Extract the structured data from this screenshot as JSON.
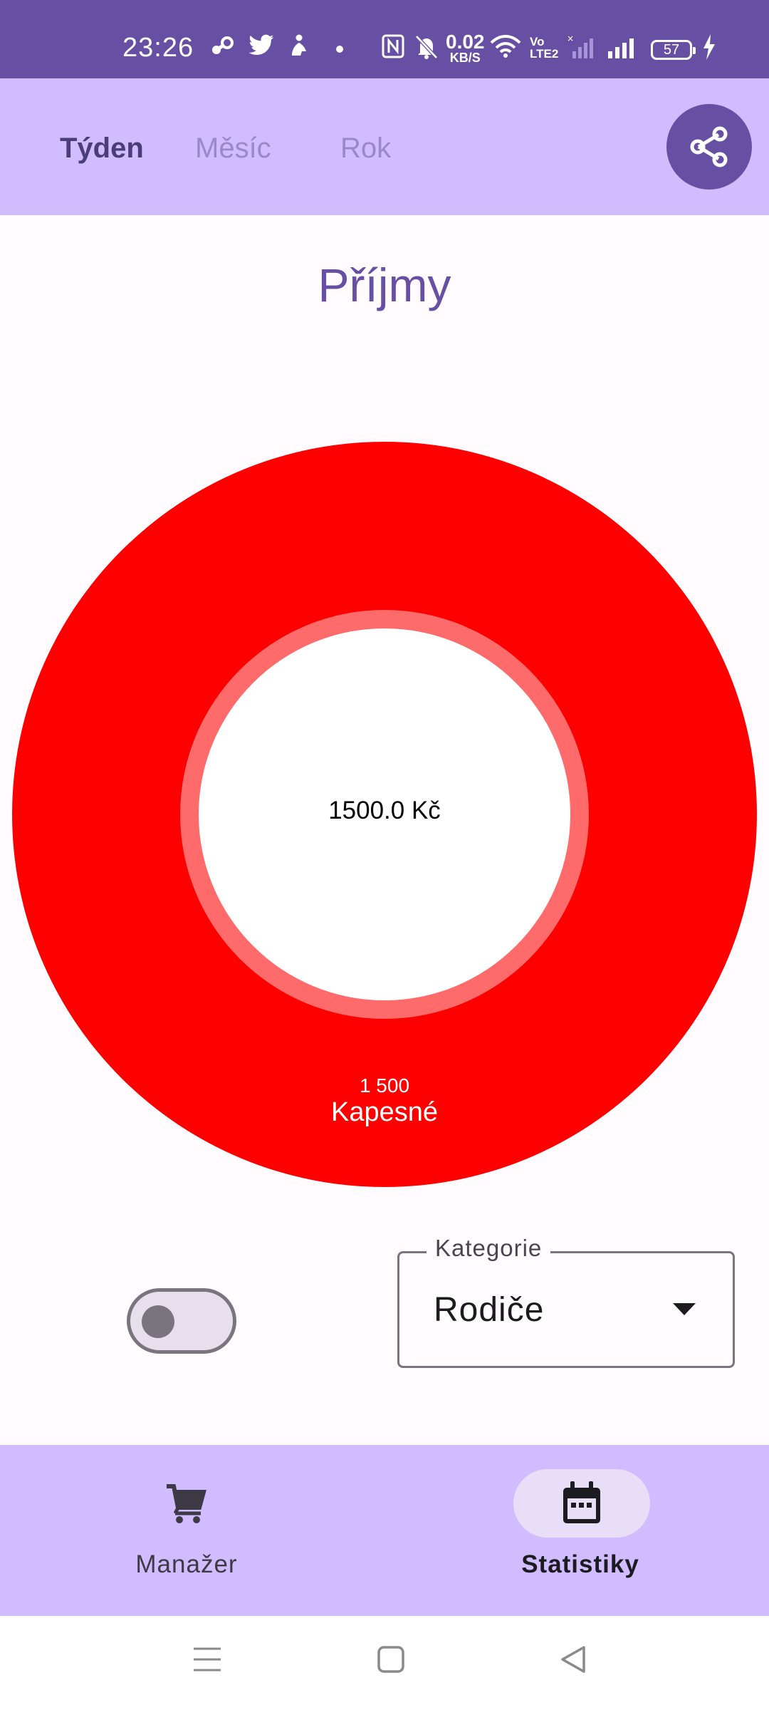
{
  "status_bar": {
    "time": "23:26",
    "net_speed_value": "0.02",
    "net_speed_unit": "KB/S",
    "network_label_top": "Vo",
    "network_label_bottom": "LTE2",
    "battery": "57",
    "icons": [
      "steam-icon",
      "twitter-icon",
      "fitness-icon",
      "dot-icon",
      "nfc-icon",
      "mute-icon",
      "wifi-icon",
      "signal-icon",
      "signal-icon",
      "charging-icon"
    ]
  },
  "tabs": [
    {
      "label": "Týden",
      "selected": true
    },
    {
      "label": "Měsíc",
      "selected": false
    },
    {
      "label": "Rok",
      "selected": false
    }
  ],
  "page_title": "Příjmy",
  "chart_data": {
    "type": "pie",
    "style": "donut",
    "center_label": "1500.0 Kč",
    "slices": [
      {
        "label": "Kapesné",
        "value": 1500,
        "value_label": "1 500",
        "color": "#ff0000"
      }
    ]
  },
  "switch": {
    "on": false
  },
  "category": {
    "label": "Kategorie",
    "value": "Rodiče"
  },
  "bottom_nav": [
    {
      "label": "Manažer",
      "icon": "cart-icon",
      "selected": false
    },
    {
      "label": "Statistiky",
      "icon": "calendar-icon",
      "selected": true
    }
  ],
  "colors": {
    "primary": "#6750a4",
    "container": "#d0bcff",
    "slice": "#ff0000",
    "slice_inner_ring": "#ff6b6b"
  }
}
